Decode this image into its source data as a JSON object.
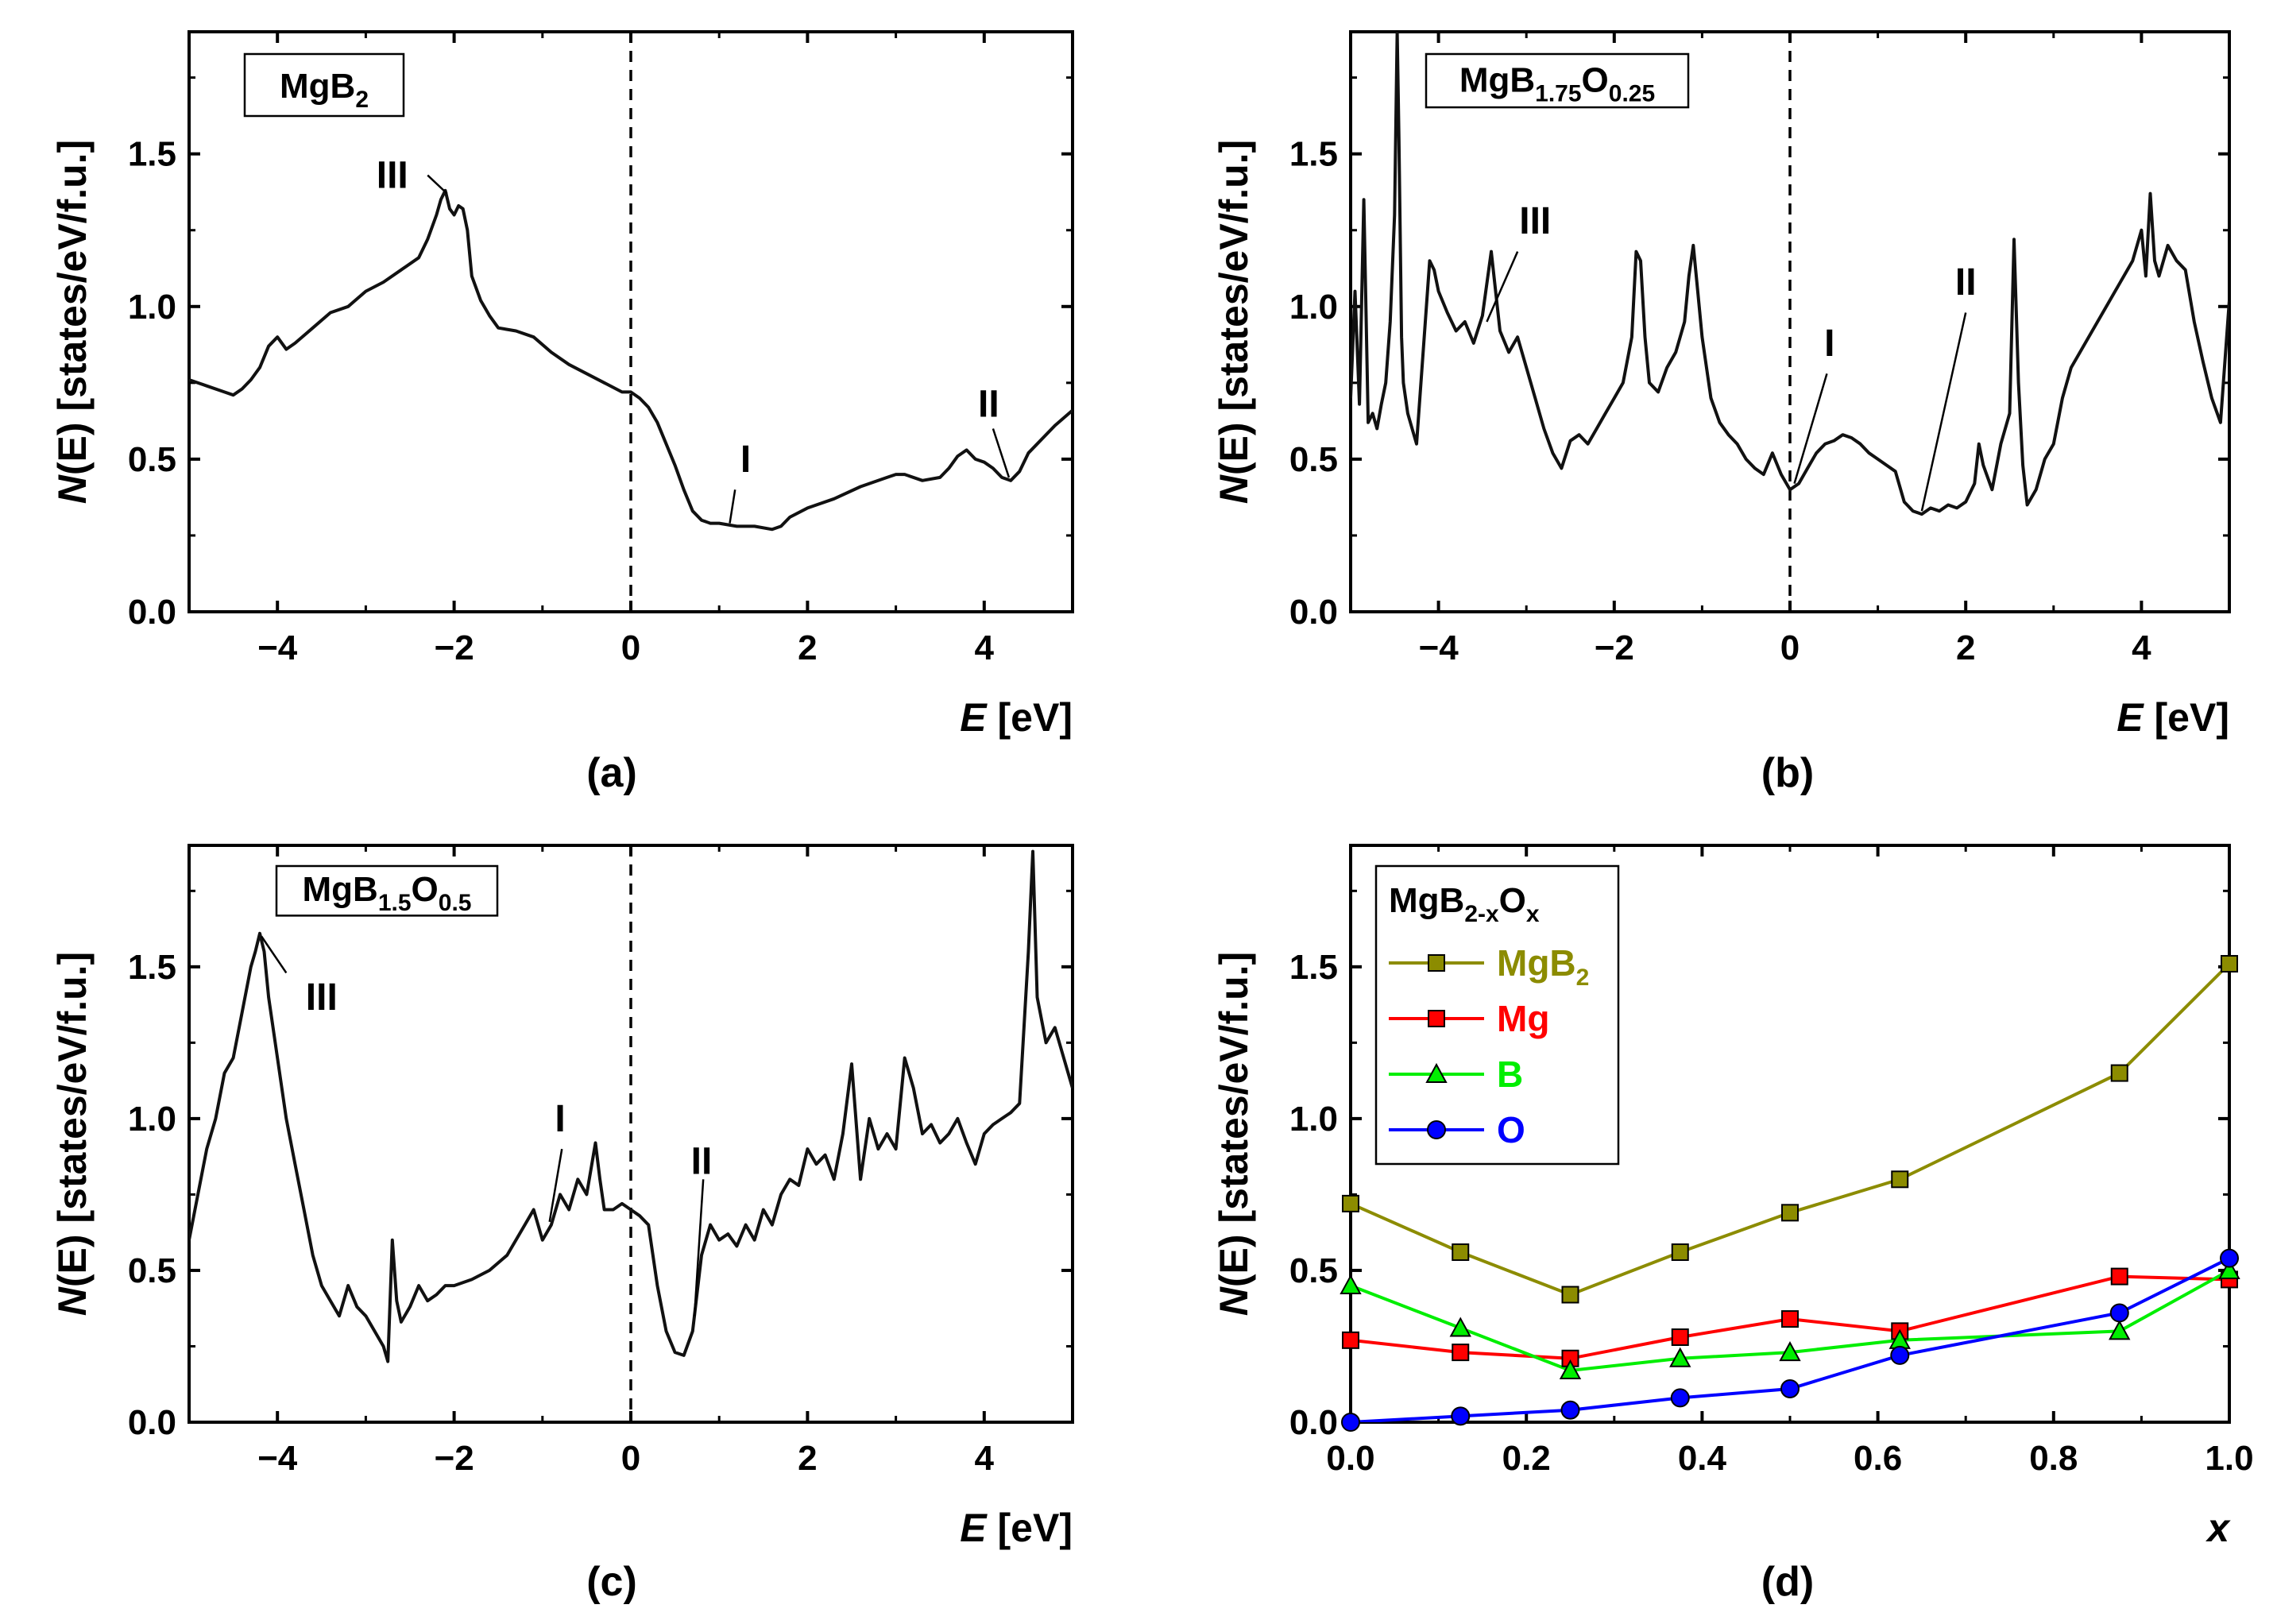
{
  "chart_data": [
    {
      "panel": "(a)",
      "type": "line",
      "title": "MgB2",
      "title_main": "MgB",
      "title_sub": "2",
      "xlabel_italic": "E",
      "xlabel_unit": " [eV]",
      "ylabel_italic": "N",
      "ylabel_rest": "(E) [states/eV/f.u.]",
      "xlim": [
        -5,
        5
      ],
      "ylim": [
        0,
        1.9
      ],
      "xticks": [
        -4,
        -2,
        0,
        2,
        4
      ],
      "xtick_labels": [
        "−4",
        "−2",
        "0",
        "2",
        "4"
      ],
      "yticks": [
        0,
        0.5,
        1.0,
        1.5
      ],
      "ytick_labels": [
        "0.0",
        "0.5",
        "1.0",
        "1.5"
      ],
      "fermi_line_x": 0,
      "series": [
        {
          "x": [
            -5.0,
            -4.8,
            -4.6,
            -4.5,
            -4.4,
            -4.3,
            -4.2,
            -4.1,
            -4.0,
            -3.9,
            -3.8,
            -3.6,
            -3.4,
            -3.2,
            -3.0,
            -2.8,
            -2.6,
            -2.4,
            -2.3,
            -2.2,
            -2.15,
            -2.1,
            -2.05,
            -2.0,
            -1.95,
            -1.9,
            -1.85,
            -1.8,
            -1.7,
            -1.6,
            -1.5,
            -1.3,
            -1.1,
            -0.9,
            -0.7,
            -0.5,
            -0.3,
            -0.1,
            0.0,
            0.1,
            0.2,
            0.3,
            0.4,
            0.5,
            0.6,
            0.7,
            0.8,
            0.9,
            1.0,
            1.2,
            1.4,
            1.6,
            1.7,
            1.8,
            2.0,
            2.3,
            2.6,
            2.9,
            3.0,
            3.1,
            3.3,
            3.5,
            3.6,
            3.7,
            3.8,
            3.9,
            4.0,
            4.1,
            4.2,
            4.3,
            4.4,
            4.5,
            4.6,
            4.8,
            5.0
          ],
          "y": [
            0.76,
            0.74,
            0.72,
            0.71,
            0.73,
            0.76,
            0.8,
            0.87,
            0.9,
            0.86,
            0.88,
            0.93,
            0.98,
            1.0,
            1.05,
            1.08,
            1.12,
            1.16,
            1.22,
            1.3,
            1.35,
            1.38,
            1.32,
            1.3,
            1.33,
            1.32,
            1.25,
            1.1,
            1.02,
            0.97,
            0.93,
            0.92,
            0.9,
            0.85,
            0.81,
            0.78,
            0.75,
            0.72,
            0.72,
            0.7,
            0.67,
            0.62,
            0.55,
            0.48,
            0.4,
            0.33,
            0.3,
            0.29,
            0.29,
            0.28,
            0.28,
            0.27,
            0.28,
            0.31,
            0.34,
            0.37,
            0.41,
            0.44,
            0.45,
            0.45,
            0.43,
            0.44,
            0.47,
            0.51,
            0.53,
            0.5,
            0.49,
            0.47,
            0.44,
            0.43,
            0.46,
            0.52,
            0.55,
            0.61,
            0.66
          ]
        }
      ],
      "annotations": [
        {
          "text": "III",
          "x": -2.7,
          "y": 1.43,
          "lx1": -2.3,
          "ly1": 1.43,
          "lx2": -2.08,
          "ly2": 1.37
        },
        {
          "text": "I",
          "x": 1.3,
          "y": 0.5,
          "lx1": 1.18,
          "ly1": 0.4,
          "lx2": 1.12,
          "ly2": 0.29
        },
        {
          "text": "II",
          "x": 4.05,
          "y": 0.68,
          "lx1": 4.1,
          "ly1": 0.6,
          "lx2": 4.28,
          "ly2": 0.44
        }
      ]
    },
    {
      "panel": "(b)",
      "type": "line",
      "title": "MgB1.75O0.25",
      "title_main": "MgB",
      "title_sub": "1.75",
      "title_main2": "O",
      "title_sub2": "0.25",
      "xlabel_italic": "E",
      "xlabel_unit": " [eV]",
      "ylabel_italic": "N",
      "ylabel_rest": "(E) [states/eV/f.u.]",
      "xlim": [
        -5,
        5
      ],
      "ylim": [
        0,
        1.9
      ],
      "xticks": [
        -4,
        -2,
        0,
        2,
        4
      ],
      "xtick_labels": [
        "−4",
        "−2",
        "0",
        "2",
        "4"
      ],
      "yticks": [
        0,
        0.5,
        1.0,
        1.5
      ],
      "ytick_labels": [
        "0.0",
        "0.5",
        "1.0",
        "1.5"
      ],
      "fermi_line_x": 0,
      "series": [
        {
          "x": [
            -5.0,
            -4.95,
            -4.9,
            -4.85,
            -4.8,
            -4.75,
            -4.7,
            -4.65,
            -4.6,
            -4.55,
            -4.5,
            -4.47,
            -4.45,
            -4.42,
            -4.4,
            -4.35,
            -4.3,
            -4.25,
            -4.2,
            -4.15,
            -4.1,
            -4.05,
            -4.0,
            -3.9,
            -3.8,
            -3.7,
            -3.6,
            -3.5,
            -3.4,
            -3.3,
            -3.2,
            -3.1,
            -3.0,
            -2.9,
            -2.8,
            -2.7,
            -2.6,
            -2.5,
            -2.4,
            -2.3,
            -2.2,
            -2.1,
            -2.0,
            -1.9,
            -1.8,
            -1.75,
            -1.7,
            -1.65,
            -1.6,
            -1.5,
            -1.4,
            -1.3,
            -1.2,
            -1.15,
            -1.1,
            -1.05,
            -1.0,
            -0.9,
            -0.8,
            -0.7,
            -0.6,
            -0.5,
            -0.4,
            -0.3,
            -0.2,
            -0.1,
            0.0,
            0.1,
            0.2,
            0.3,
            0.4,
            0.5,
            0.6,
            0.7,
            0.8,
            0.9,
            1.0,
            1.1,
            1.2,
            1.3,
            1.4,
            1.5,
            1.6,
            1.7,
            1.8,
            1.9,
            2.0,
            2.1,
            2.15,
            2.2,
            2.3,
            2.4,
            2.5,
            2.55,
            2.6,
            2.65,
            2.7,
            2.8,
            2.9,
            3.0,
            3.1,
            3.2,
            3.3,
            3.4,
            3.5,
            3.6,
            3.7,
            3.8,
            3.9,
            4.0,
            4.05,
            4.1,
            4.15,
            4.2,
            4.3,
            4.4,
            4.5,
            4.6,
            4.7,
            4.8,
            4.9,
            5.0
          ],
          "y": [
            0.7,
            1.05,
            0.68,
            1.35,
            0.62,
            0.65,
            0.6,
            0.68,
            0.75,
            0.95,
            1.3,
            1.9,
            1.55,
            0.9,
            0.75,
            0.65,
            0.6,
            0.55,
            0.75,
            0.95,
            1.15,
            1.12,
            1.05,
            0.98,
            0.92,
            0.95,
            0.88,
            0.97,
            1.18,
            0.92,
            0.85,
            0.9,
            0.8,
            0.7,
            0.6,
            0.52,
            0.47,
            0.56,
            0.58,
            0.55,
            0.6,
            0.65,
            0.7,
            0.75,
            0.9,
            1.18,
            1.15,
            0.9,
            0.75,
            0.72,
            0.8,
            0.85,
            0.95,
            1.1,
            1.2,
            1.05,
            0.9,
            0.7,
            0.62,
            0.58,
            0.55,
            0.5,
            0.47,
            0.45,
            0.52,
            0.45,
            0.4,
            0.42,
            0.47,
            0.52,
            0.55,
            0.56,
            0.58,
            0.57,
            0.55,
            0.52,
            0.5,
            0.48,
            0.46,
            0.36,
            0.33,
            0.32,
            0.34,
            0.33,
            0.35,
            0.34,
            0.36,
            0.42,
            0.55,
            0.48,
            0.4,
            0.55,
            0.65,
            1.22,
            0.75,
            0.48,
            0.35,
            0.4,
            0.5,
            0.55,
            0.7,
            0.8,
            0.85,
            0.9,
            0.95,
            1.0,
            1.05,
            1.1,
            1.15,
            1.25,
            1.1,
            1.37,
            1.15,
            1.1,
            1.2,
            1.15,
            1.12,
            0.95,
            0.82,
            0.7,
            0.62,
            1.02
          ]
        }
      ],
      "annotations": [
        {
          "text": "III",
          "x": -2.9,
          "y": 1.28,
          "lx1": -3.1,
          "ly1": 1.18,
          "lx2": -3.45,
          "ly2": 0.95
        },
        {
          "text": "I",
          "x": 0.45,
          "y": 0.88,
          "lx1": 0.42,
          "ly1": 0.78,
          "lx2": 0.05,
          "ly2": 0.42
        },
        {
          "text": "II",
          "x": 2.0,
          "y": 1.08,
          "lx1": 2.0,
          "ly1": 0.98,
          "lx2": 1.5,
          "ly2": 0.33
        }
      ]
    },
    {
      "panel": "(c)",
      "type": "line",
      "title": "MgB1.5O0.5",
      "title_main": "MgB",
      "title_sub": "1.5",
      "title_main2": "O",
      "title_sub2": "0.5",
      "xlabel_italic": "E",
      "xlabel_unit": " [eV]",
      "ylabel_italic": "N",
      "ylabel_rest": "(E) [states/eV/f.u.]",
      "xlim": [
        -5,
        5
      ],
      "ylim": [
        0,
        1.9
      ],
      "xticks": [
        -4,
        -2,
        0,
        2,
        4
      ],
      "xtick_labels": [
        "−4",
        "−2",
        "0",
        "2",
        "4"
      ],
      "yticks": [
        0,
        0.5,
        1.0,
        1.5
      ],
      "ytick_labels": [
        "0.0",
        "0.5",
        "1.0",
        "1.5"
      ],
      "fermi_line_x": 0,
      "series": [
        {
          "x": [
            -5.0,
            -4.9,
            -4.8,
            -4.7,
            -4.6,
            -4.5,
            -4.4,
            -4.3,
            -4.25,
            -4.2,
            -4.15,
            -4.1,
            -4.0,
            -3.9,
            -3.8,
            -3.7,
            -3.6,
            -3.5,
            -3.4,
            -3.3,
            -3.2,
            -3.1,
            -3.0,
            -2.9,
            -2.8,
            -2.75,
            -2.7,
            -2.65,
            -2.6,
            -2.5,
            -2.4,
            -2.3,
            -2.2,
            -2.1,
            -2.0,
            -1.8,
            -1.6,
            -1.4,
            -1.2,
            -1.1,
            -1.0,
            -0.9,
            -0.8,
            -0.7,
            -0.6,
            -0.5,
            -0.4,
            -0.35,
            -0.3,
            -0.2,
            -0.1,
            0.0,
            0.1,
            0.2,
            0.3,
            0.4,
            0.5,
            0.6,
            0.7,
            0.8,
            0.9,
            1.0,
            1.1,
            1.2,
            1.3,
            1.4,
            1.5,
            1.6,
            1.7,
            1.8,
            1.9,
            2.0,
            2.1,
            2.2,
            2.3,
            2.4,
            2.5,
            2.6,
            2.7,
            2.8,
            2.9,
            3.0,
            3.1,
            3.2,
            3.3,
            3.4,
            3.5,
            3.6,
            3.7,
            3.8,
            3.9,
            4.0,
            4.1,
            4.2,
            4.3,
            4.4,
            4.5,
            4.55,
            4.6,
            4.7,
            4.8,
            4.9,
            5.0
          ],
          "y": [
            0.6,
            0.75,
            0.9,
            1.0,
            1.15,
            1.2,
            1.35,
            1.5,
            1.55,
            1.61,
            1.55,
            1.4,
            1.2,
            1.0,
            0.85,
            0.7,
            0.55,
            0.45,
            0.4,
            0.35,
            0.45,
            0.38,
            0.35,
            0.3,
            0.25,
            0.2,
            0.6,
            0.4,
            0.33,
            0.38,
            0.45,
            0.4,
            0.42,
            0.45,
            0.45,
            0.47,
            0.5,
            0.55,
            0.65,
            0.7,
            0.6,
            0.65,
            0.75,
            0.7,
            0.8,
            0.75,
            0.92,
            0.8,
            0.7,
            0.7,
            0.72,
            0.7,
            0.68,
            0.65,
            0.45,
            0.3,
            0.23,
            0.22,
            0.3,
            0.55,
            0.65,
            0.6,
            0.62,
            0.58,
            0.65,
            0.6,
            0.7,
            0.65,
            0.75,
            0.8,
            0.78,
            0.9,
            0.85,
            0.88,
            0.8,
            0.95,
            1.18,
            0.8,
            1.0,
            0.9,
            0.95,
            0.9,
            1.2,
            1.1,
            0.95,
            0.98,
            0.92,
            0.95,
            1.0,
            0.92,
            0.85,
            0.95,
            0.98,
            1.0,
            1.02,
            1.05,
            1.55,
            1.88,
            1.4,
            1.25,
            1.3,
            1.2,
            1.1
          ]
        }
      ],
      "annotations": [
        {
          "text": "III",
          "x": -3.5,
          "y": 1.4,
          "lx1": -3.9,
          "ly1": 1.48,
          "lx2": -4.18,
          "ly2": 1.6
        },
        {
          "text": "I",
          "x": -0.8,
          "y": 1.0,
          "lx1": -0.78,
          "ly1": 0.9,
          "lx2": -0.92,
          "ly2": 0.66
        },
        {
          "text": "II",
          "x": 0.8,
          "y": 0.86,
          "lx1": 0.82,
          "ly1": 0.8,
          "lx2": 0.72,
          "ly2": 0.35
        }
      ]
    },
    {
      "panel": "(d)",
      "type": "line",
      "title": "MgB2-xOx",
      "title_main": "MgB",
      "title_sub": "2-x",
      "title_main2": "O",
      "title_sub2": "x",
      "xlabel_italic": "x",
      "xlabel_unit": "",
      "ylabel_italic": "N",
      "ylabel_rest": "(E) [states/eV/f.u.]",
      "xlim": [
        0,
        1.0
      ],
      "ylim": [
        0,
        1.9
      ],
      "xticks": [
        0,
        0.2,
        0.4,
        0.6,
        0.8,
        1.0
      ],
      "xtick_labels": [
        "0.0",
        "0.2",
        "0.4",
        "0.6",
        "0.8",
        "1.0"
      ],
      "yticks": [
        0,
        0.5,
        1.0,
        1.5
      ],
      "ytick_labels": [
        "0.0",
        "0.5",
        "1.0",
        "1.5"
      ],
      "x": [
        0.0,
        0.125,
        0.25,
        0.375,
        0.5,
        0.625,
        0.875,
        1.0
      ],
      "series": [
        {
          "name": "MgB2",
          "name_main": "MgB",
          "name_sub": "2",
          "color": "#8c8c00",
          "marker": "square",
          "values": [
            0.72,
            0.56,
            0.42,
            0.56,
            0.69,
            0.8,
            1.15,
            1.51
          ]
        },
        {
          "name": "Mg",
          "name_main": "Mg",
          "name_sub": "",
          "color": "#ff0000",
          "marker": "square",
          "values": [
            0.27,
            0.23,
            0.21,
            0.28,
            0.34,
            0.3,
            0.48,
            0.47
          ]
        },
        {
          "name": "B",
          "name_main": "B",
          "name_sub": "",
          "color": "#00ee00",
          "marker": "triangle",
          "values": [
            0.45,
            0.31,
            0.17,
            0.21,
            0.23,
            0.27,
            0.3,
            0.5
          ]
        },
        {
          "name": "O",
          "name_main": "O",
          "name_sub": "",
          "color": "#0000ff",
          "marker": "circle",
          "values": [
            0.0,
            0.02,
            0.04,
            0.08,
            0.11,
            0.22,
            0.36,
            0.54
          ]
        }
      ]
    }
  ]
}
